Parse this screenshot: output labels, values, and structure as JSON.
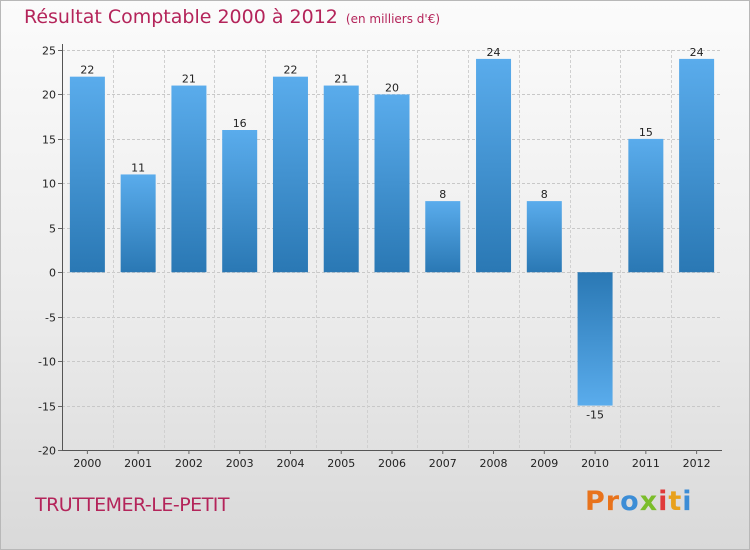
{
  "header": {
    "title": "Résultat Comptable 2000 à 2012",
    "subtitle": "(en milliers d'€)"
  },
  "footer": {
    "city": "TRUTTEMER-LE-PETIT",
    "brand_letters": [
      "P",
      "r",
      "o",
      "x",
      "i",
      "t",
      "i"
    ],
    "brand_colors": [
      "#e8731c",
      "#e8731c",
      "#3c8dd6",
      "#7bbd2a",
      "#e03a3a",
      "#e8a11c",
      "#3c8dd6"
    ]
  },
  "chart_data": {
    "type": "bar",
    "title": "Résultat Comptable 2000 à 2012",
    "units": "en milliers d'€",
    "categories": [
      "2000",
      "2001",
      "2002",
      "2003",
      "2004",
      "2005",
      "2006",
      "2007",
      "2008",
      "2009",
      "2010",
      "2011",
      "2012"
    ],
    "values": [
      22,
      11,
      21,
      16,
      22,
      21,
      20,
      8,
      24,
      8,
      -15,
      15,
      24
    ],
    "labels": [
      "22",
      "11",
      "21",
      "16",
      "22",
      "21",
      "20",
      "8",
      "24",
      "8",
      "-15",
      "15",
      "24"
    ],
    "ylim": [
      -20,
      25
    ],
    "yticks": [
      25,
      20,
      15,
      10,
      5,
      0,
      -5,
      -10,
      -15,
      -20
    ],
    "ytick_labels": [
      "25",
      "20",
      "15",
      "10",
      "5",
      "0",
      "-5",
      "-10",
      "-15",
      "-20"
    ],
    "grid": true,
    "bar_color_dark": "#2a78b4",
    "bar_color_light": "#5aacec",
    "xlabel": "",
    "ylabel": ""
  }
}
